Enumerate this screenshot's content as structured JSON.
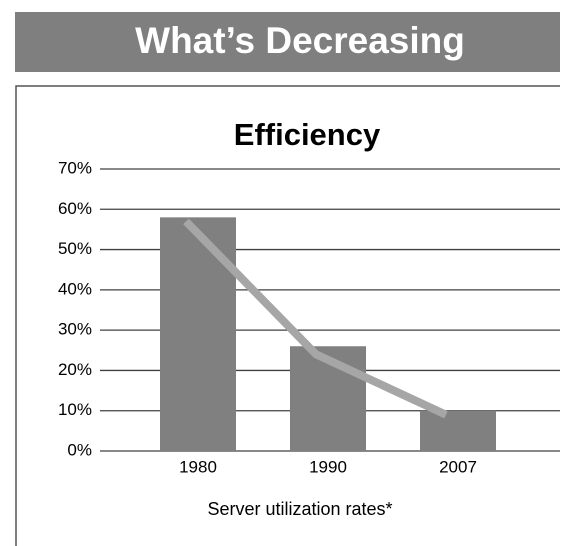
{
  "header": {
    "title": "What’s Decreasing"
  },
  "chart_data": {
    "type": "bar",
    "title": "Efficiency",
    "x_label": "Server utilization rates*",
    "categories": [
      "1980",
      "1990",
      "2007"
    ],
    "series": [
      {
        "type": "bar",
        "color": "#808080",
        "values": [
          58,
          26,
          10
        ]
      },
      {
        "type": "line",
        "color": "#a6a6a6",
        "values": [
          57,
          24,
          9
        ]
      }
    ],
    "ylim": [
      0,
      70
    ],
    "yticks": [
      {
        "value": 0,
        "label": "0%"
      },
      {
        "value": 10,
        "label": "10%"
      },
      {
        "value": 20,
        "label": "20%"
      },
      {
        "value": 30,
        "label": "30%"
      },
      {
        "value": 40,
        "label": "40%"
      },
      {
        "value": 50,
        "label": "50%"
      },
      {
        "value": 60,
        "label": "60%"
      },
      {
        "value": 70,
        "label": "70%"
      }
    ],
    "grid": true
  }
}
